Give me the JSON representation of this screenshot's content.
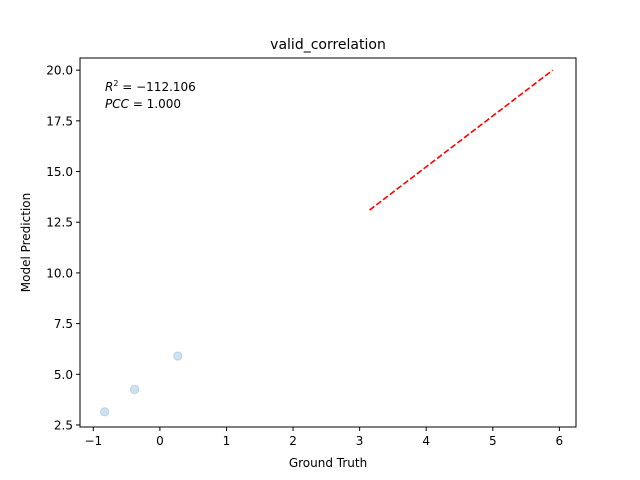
{
  "chart_data": {
    "type": "scatter",
    "title": "valid_correlation",
    "xlabel": "Ground Truth",
    "ylabel": "Model Prediction",
    "xlim": [
      -1.2,
      6.25
    ],
    "ylim": [
      2.4,
      20.6
    ],
    "xticks": [
      -1,
      0,
      1,
      2,
      3,
      4,
      5,
      6
    ],
    "xtick_labels": [
      "−1",
      "0",
      "1",
      "2",
      "3",
      "4",
      "5",
      "6"
    ],
    "yticks": [
      2.5,
      5.0,
      7.5,
      10.0,
      12.5,
      15.0,
      17.5,
      20.0
    ],
    "ytick_labels": [
      "2.5",
      "5.0",
      "7.5",
      "10.0",
      "12.5",
      "15.0",
      "17.5",
      "20.0"
    ],
    "grid": false,
    "points": [
      {
        "x": -0.83,
        "y": 3.15
      },
      {
        "x": -0.38,
        "y": 4.25
      },
      {
        "x": 0.27,
        "y": 5.9
      }
    ],
    "point_color": "#1f77b4",
    "fit_line": {
      "x": [
        3.15,
        5.9
      ],
      "y": [
        13.1,
        20.0
      ],
      "color": "#ff0000",
      "style": "dashed"
    },
    "annotations": {
      "r2_label": "R",
      "r2_exp": "2",
      "r2_value": " = −112.106",
      "pcc_label": "PCC",
      "pcc_value": " = 1.000"
    }
  }
}
